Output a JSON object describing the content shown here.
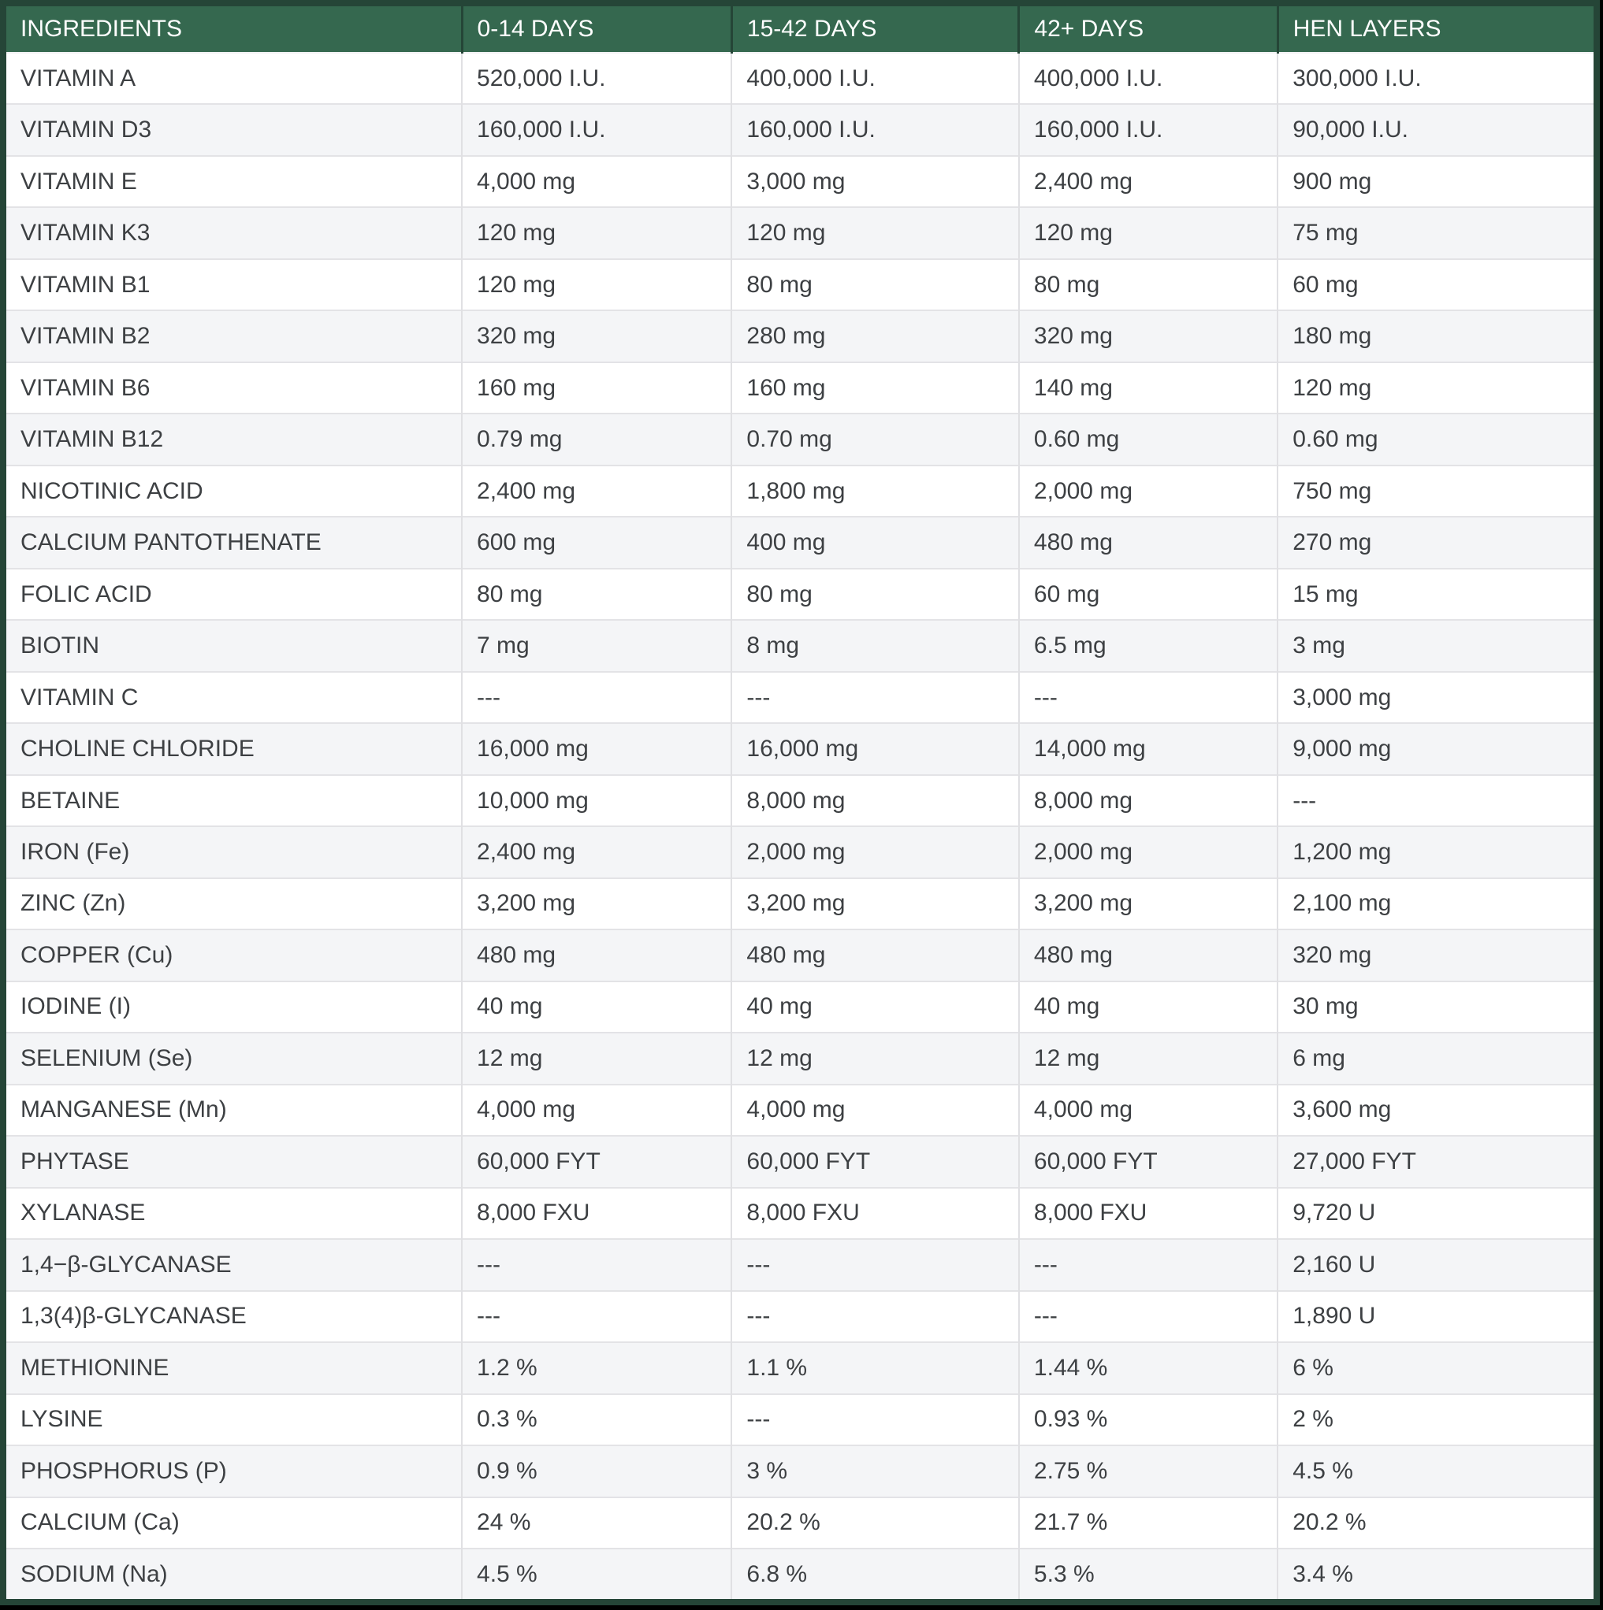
{
  "table": {
    "columns": [
      "INGREDIENTS",
      "0-14 DAYS",
      "15-42 DAYS",
      "42+ DAYS",
      "HEN LAYERS"
    ],
    "rows": [
      {
        "ingredient": "VITAMIN A",
        "values": [
          "520,000 I.U.",
          "400,000 I.U.",
          "400,000 I.U.",
          "300,000 I.U."
        ]
      },
      {
        "ingredient": "VITAMIN D3",
        "values": [
          "160,000 I.U.",
          "160,000 I.U.",
          "160,000 I.U.",
          "90,000 I.U."
        ]
      },
      {
        "ingredient": "VITAMIN E",
        "values": [
          "4,000 mg",
          "3,000 mg",
          "2,400 mg",
          "900 mg"
        ]
      },
      {
        "ingredient": "VITAMIN K3",
        "values": [
          "120 mg",
          "120 mg",
          "120 mg",
          "75 mg"
        ]
      },
      {
        "ingredient": "VITAMIN B1",
        "values": [
          "120 mg",
          "80 mg",
          "80 mg",
          "60 mg"
        ]
      },
      {
        "ingredient": "VITAMIN B2",
        "values": [
          "320 mg",
          "280 mg",
          "320 mg",
          "180 mg"
        ]
      },
      {
        "ingredient": "VITAMIN B6",
        "values": [
          "160 mg",
          "160 mg",
          "140 mg",
          "120 mg"
        ]
      },
      {
        "ingredient": "VITAMIN B12",
        "values": [
          "0.79 mg",
          "0.70 mg",
          "0.60 mg",
          "0.60 mg"
        ]
      },
      {
        "ingredient": "NICOTINIC ACID",
        "values": [
          "2,400 mg",
          "1,800 mg",
          "2,000 mg",
          "750 mg"
        ]
      },
      {
        "ingredient": "CALCIUM PANTOTHENATE",
        "values": [
          "600 mg",
          "400 mg",
          "480 mg",
          "270 mg"
        ]
      },
      {
        "ingredient": "FOLIC ACID",
        "values": [
          "80 mg",
          "80 mg",
          "60 mg",
          "15 mg"
        ]
      },
      {
        "ingredient": "BIOTIN",
        "values": [
          "7 mg",
          "8 mg",
          "6.5 mg",
          "3 mg"
        ]
      },
      {
        "ingredient": "VITAMIN C",
        "values": [
          "---",
          "---",
          "---",
          "3,000 mg"
        ]
      },
      {
        "ingredient": "CHOLINE CHLORIDE",
        "values": [
          "16,000 mg",
          "16,000 mg",
          "14,000 mg",
          "9,000 mg"
        ]
      },
      {
        "ingredient": "BETAINE",
        "values": [
          "10,000 mg",
          "8,000 mg",
          "8,000 mg",
          "---"
        ]
      },
      {
        "ingredient": "IRON (Fe)",
        "values": [
          "2,400 mg",
          "2,000 mg",
          "2,000 mg",
          "1,200 mg"
        ]
      },
      {
        "ingredient": "ZINC (Zn)",
        "values": [
          "3,200 mg",
          "3,200 mg",
          "3,200 mg",
          "2,100 mg"
        ]
      },
      {
        "ingredient": "COPPER (Cu)",
        "values": [
          "480 mg",
          "480 mg",
          "480 mg",
          "320 mg"
        ]
      },
      {
        "ingredient": "IODINE (I)",
        "values": [
          "40 mg",
          "40 mg",
          "40 mg",
          "30 mg"
        ]
      },
      {
        "ingredient": "SELENIUM (Se)",
        "values": [
          "12 mg",
          "12 mg",
          "12 mg",
          "6 mg"
        ]
      },
      {
        "ingredient": "MANGANESE (Mn)",
        "values": [
          "4,000 mg",
          "4,000 mg",
          "4,000 mg",
          "3,600 mg"
        ]
      },
      {
        "ingredient": "PHYTASE",
        "values": [
          "60,000 FYT",
          "60,000 FYT",
          "60,000 FYT",
          "27,000 FYT"
        ]
      },
      {
        "ingredient": "XYLANASE",
        "values": [
          "8,000 FXU",
          "8,000 FXU",
          "8,000 FXU",
          "9,720 U"
        ]
      },
      {
        "ingredient": "1,4−β-GLYCANASE",
        "values": [
          "---",
          "---",
          "---",
          "2,160 U"
        ]
      },
      {
        "ingredient": "1,3(4)β-GLYCANASE",
        "values": [
          "---",
          "---",
          "---",
          "1,890 U"
        ]
      },
      {
        "ingredient": "METHIONINE",
        "values": [
          "1.2 %",
          "1.1 %",
          "1.44 %",
          "6 %"
        ]
      },
      {
        "ingredient": "LYSINE",
        "values": [
          "0.3 %",
          "---",
          "0.93 %",
          "2 %"
        ]
      },
      {
        "ingredient": "PHOSPHORUS (P)",
        "values": [
          "0.9 %",
          "3 %",
          "2.75 %",
          "4.5 %"
        ]
      },
      {
        "ingredient": "CALCIUM (Ca)",
        "values": [
          "24 %",
          "20.2 %",
          "21.7 %",
          "20.2 %"
        ]
      },
      {
        "ingredient": "SODIUM (Na)",
        "values": [
          "4.5 %",
          "6.8 %",
          "5.3 %",
          "3.4 %"
        ]
      }
    ]
  },
  "colors": {
    "header_background": "#35684F",
    "outer_border": "#254537",
    "row_stripe": "#F4F5F7",
    "body_text": "#3D4043",
    "header_text": "#FFFFFF"
  }
}
